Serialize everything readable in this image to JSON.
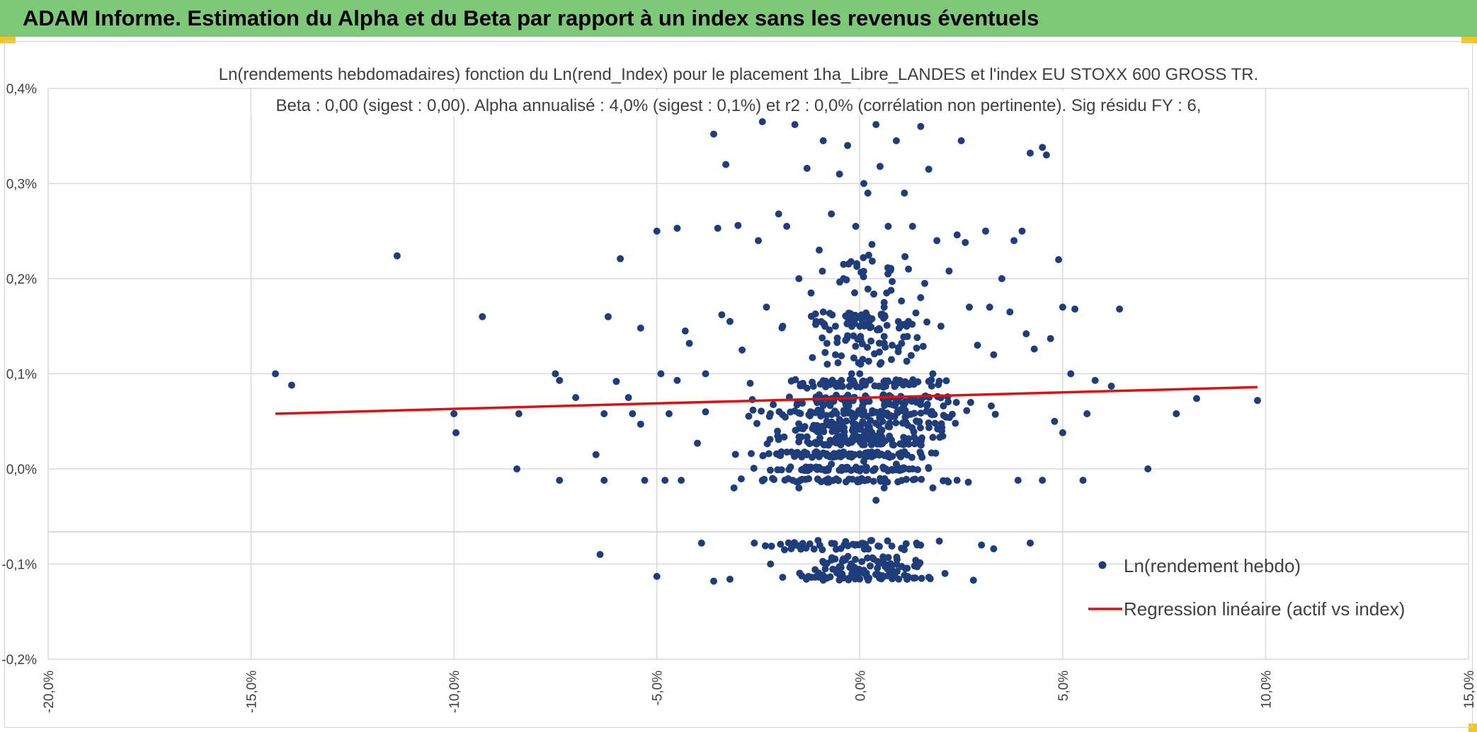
{
  "header": {
    "title": "ADAM Informe. Estimation du Alpha et du Beta par rapport à un index sans les revenus éventuels",
    "background_color": "#7ec87a",
    "corner_color": "#f5c518"
  },
  "chart_data": {
    "type": "scatter",
    "title_line1": "Ln(rendements hebdomadaires) fonction du Ln(rend_Index) pour le placement 1ha_Libre_LANDES et l'index EU STOXX 600 GROSS TR.",
    "title_line2": "Beta : 0,00 (sigest : 0,00). Alpha annualisé : 4,0% (sigest : 0,1%) et r2 : 0,0% (corrélation non pertinente). Sig résidu FY : 6,",
    "xlim": [
      -20,
      15
    ],
    "ylim": [
      -0.2,
      0.4
    ],
    "x_ticks": [
      -20,
      -15,
      -10,
      -5,
      0,
      5,
      10,
      15
    ],
    "x_tick_labels": [
      "-20,0%",
      "-15,0%",
      "-10,0%",
      "-5,0%",
      "0,0%",
      "5,0%",
      "10,0%",
      "15,0%"
    ],
    "y_ticks": [
      0.4,
      0.3,
      0.2,
      0.1,
      0.0,
      -0.1,
      -0.2
    ],
    "y_tick_labels": [
      "0,4%",
      "0,3%",
      "0,2%",
      "0,1%",
      "0,0%",
      "-0,1%",
      "-0,2%"
    ],
    "grid": true,
    "legend_position": "bottom-right",
    "series": [
      {
        "name": "Ln(rendement hebdo)",
        "kind": "scatter",
        "color": "#1f3d7a",
        "points": [
          [
            -14.4,
            0.1
          ],
          [
            -14.0,
            0.088
          ],
          [
            -11.4,
            0.224
          ],
          [
            -10.0,
            0.058
          ],
          [
            -9.95,
            0.038
          ],
          [
            -9.3,
            0.16
          ],
          [
            -8.4,
            0.058
          ],
          [
            -8.45,
            0.0
          ],
          [
            -7.5,
            0.1
          ],
          [
            -7.4,
            0.093
          ],
          [
            -7.4,
            -0.012
          ],
          [
            -7.0,
            0.075
          ],
          [
            -6.5,
            0.015
          ],
          [
            -6.4,
            -0.09
          ],
          [
            -6.3,
            -0.012
          ],
          [
            -6.3,
            0.058
          ],
          [
            -6.2,
            0.16
          ],
          [
            -6.0,
            0.092
          ],
          [
            -5.9,
            0.221
          ],
          [
            -5.7,
            0.075
          ],
          [
            -5.6,
            0.058
          ],
          [
            -5.4,
            0.148
          ],
          [
            -5.4,
            0.047
          ],
          [
            -5.3,
            -0.012
          ],
          [
            -5.0,
            0.25
          ],
          [
            -5.0,
            -0.113
          ],
          [
            -4.9,
            0.1
          ],
          [
            -4.7,
            0.058
          ],
          [
            -4.5,
            0.253
          ],
          [
            -4.5,
            0.093
          ],
          [
            -4.4,
            -0.012
          ],
          [
            -4.3,
            0.145
          ],
          [
            -4.2,
            0.132
          ],
          [
            -4.0,
            0.027
          ],
          [
            -3.9,
            -0.078
          ],
          [
            -3.8,
            0.1
          ],
          [
            -3.8,
            0.06
          ],
          [
            -3.6,
            0.352
          ],
          [
            -3.5,
            0.253
          ],
          [
            -3.4,
            0.162
          ],
          [
            -3.3,
            0.32
          ],
          [
            -3.2,
            0.155
          ],
          [
            -3.0,
            0.256
          ],
          [
            -2.9,
            0.125
          ],
          [
            -2.7,
            0.09
          ],
          [
            -2.5,
            0.24
          ],
          [
            -2.4,
            0.365
          ],
          [
            -2.3,
            0.17
          ],
          [
            -2.2,
            -0.1
          ],
          [
            -2.0,
            0.268
          ],
          [
            -1.9,
            0.15
          ],
          [
            -1.8,
            0.255
          ],
          [
            -1.6,
            0.362
          ],
          [
            -1.5,
            0.2
          ],
          [
            -1.4,
            0.09
          ],
          [
            -1.3,
            0.316
          ],
          [
            -1.2,
            0.185
          ],
          [
            -1.0,
            0.23
          ],
          [
            -0.9,
            0.345
          ],
          [
            -0.8,
            0.11
          ],
          [
            -0.7,
            0.268
          ],
          [
            -0.6,
            0.15
          ],
          [
            -0.5,
            0.31
          ],
          [
            -0.4,
            0.2
          ],
          [
            -0.3,
            0.34
          ],
          [
            -0.2,
            0.1
          ],
          [
            -0.1,
            0.255
          ],
          [
            0.0,
            0.15
          ],
          [
            0.1,
            0.3
          ],
          [
            0.2,
            0.29
          ],
          [
            0.3,
            0.236
          ],
          [
            0.4,
            0.362
          ],
          [
            0.5,
            0.318
          ],
          [
            0.6,
            0.17
          ],
          [
            0.7,
            0.255
          ],
          [
            0.8,
            0.197
          ],
          [
            0.9,
            0.345
          ],
          [
            1.0,
            0.15
          ],
          [
            1.1,
            0.29
          ],
          [
            1.2,
            0.21
          ],
          [
            1.3,
            0.255
          ],
          [
            1.4,
            0.127
          ],
          [
            1.5,
            0.36
          ],
          [
            1.6,
            0.195
          ],
          [
            1.7,
            0.315
          ],
          [
            1.8,
            0.1
          ],
          [
            1.9,
            0.24
          ],
          [
            2.0,
            0.15
          ],
          [
            2.2,
            0.208
          ],
          [
            2.4,
            0.246
          ],
          [
            2.5,
            0.345
          ],
          [
            2.6,
            0.238
          ],
          [
            2.7,
            0.17
          ],
          [
            2.9,
            0.13
          ],
          [
            3.1,
            0.25
          ],
          [
            3.2,
            0.17
          ],
          [
            3.3,
            0.12
          ],
          [
            3.5,
            0.2
          ],
          [
            3.7,
            0.165
          ],
          [
            3.8,
            0.24
          ],
          [
            4.0,
            0.25
          ],
          [
            4.1,
            0.142
          ],
          [
            4.2,
            0.332
          ],
          [
            4.3,
            0.126
          ],
          [
            4.5,
            0.338
          ],
          [
            4.6,
            0.33
          ],
          [
            4.7,
            0.137
          ],
          [
            4.9,
            0.22
          ],
          [
            5.0,
            0.17
          ],
          [
            5.2,
            0.1
          ],
          [
            5.3,
            0.168
          ],
          [
            5.6,
            0.058
          ],
          [
            5.8,
            0.093
          ],
          [
            6.2,
            0.087
          ],
          [
            6.4,
            0.168
          ],
          [
            7.1,
            0.0
          ],
          [
            7.8,
            0.058
          ],
          [
            8.3,
            0.074
          ],
          [
            9.8,
            0.072
          ],
          [
            4.8,
            0.05
          ],
          [
            5.0,
            0.038
          ],
          [
            5.5,
            -0.012
          ],
          [
            3.9,
            -0.012
          ],
          [
            4.2,
            -0.078
          ],
          [
            2.8,
            -0.117
          ],
          [
            3.0,
            -0.08
          ],
          [
            3.3,
            -0.084
          ],
          [
            -3.2,
            -0.116
          ],
          [
            -3.6,
            -0.118
          ],
          [
            -2.6,
            -0.078
          ],
          [
            -1.9,
            -0.114
          ],
          [
            -1.6,
            -0.08
          ],
          [
            -0.9,
            -0.117
          ],
          [
            1.4,
            -0.078
          ],
          [
            2.1,
            -0.11
          ],
          [
            0.4,
            -0.033
          ],
          [
            0.6,
            -0.02
          ],
          [
            -1.5,
            -0.02
          ],
          [
            1.8,
            -0.02
          ],
          [
            -4.8,
            -0.012
          ],
          [
            -3.1,
            -0.02
          ],
          [
            -2.4,
            -0.012
          ],
          [
            4.5,
            -0.012
          ],
          [
            -0.7,
            0.005
          ],
          [
            0.9,
            0.005
          ],
          [
            0.1,
            0.008
          ],
          [
            -0.2,
            0.028
          ],
          [
            0.3,
            0.038
          ],
          [
            0.7,
            0.045
          ],
          [
            -0.5,
            0.052
          ],
          [
            1.0,
            0.062
          ],
          [
            1.4,
            0.07
          ],
          [
            -1.0,
            0.078
          ],
          [
            -1.3,
            0.085
          ],
          [
            1.7,
            0.092
          ],
          [
            0.0,
            0.1
          ],
          [
            0.5,
            0.11
          ],
          [
            -0.6,
            0.12
          ],
          [
            0.8,
            0.13
          ],
          [
            -0.3,
            0.14
          ],
          [
            1.2,
            0.155
          ],
          [
            0.2,
            0.16
          ],
          [
            -0.9,
            0.165
          ],
          [
            0.6,
            0.175
          ],
          [
            1.5,
            0.18
          ]
        ],
        "band_rows": [
          {
            "y": 0.155,
            "x_min": -2.5,
            "x_max": 2.5,
            "count": 60,
            "jitter": 0.009
          },
          {
            "y": 0.09,
            "x_min": -2.6,
            "x_max": 3.1,
            "count": 70,
            "jitter": 0.004
          },
          {
            "y": 0.072,
            "x_min": -3.0,
            "x_max": 3.5,
            "count": 85,
            "jitter": 0.006
          },
          {
            "y": 0.058,
            "x_min": -3.5,
            "x_max": 3.8,
            "count": 80,
            "jitter": 0.004
          },
          {
            "y": 0.045,
            "x_min": -3.0,
            "x_max": 3.0,
            "count": 90,
            "jitter": 0.006
          },
          {
            "y": 0.03,
            "x_min": -3.2,
            "x_max": 3.0,
            "count": 85,
            "jitter": 0.005
          },
          {
            "y": 0.015,
            "x_min": -3.7,
            "x_max": 3.0,
            "count": 95,
            "jitter": 0.003
          },
          {
            "y": 0.0,
            "x_min": -3.9,
            "x_max": 2.6,
            "count": 70,
            "jitter": 0.002
          },
          {
            "y": -0.012,
            "x_min": -4.4,
            "x_max": 3.3,
            "count": 55,
            "jitter": 0.002
          },
          {
            "y": -0.08,
            "x_min": -3.8,
            "x_max": 3.0,
            "count": 45,
            "jitter": 0.005
          },
          {
            "y": -0.1,
            "x_min": -1.8,
            "x_max": 2.2,
            "count": 55,
            "jitter": 0.008
          },
          {
            "y": -0.113,
            "x_min": -2.4,
            "x_max": 2.5,
            "count": 60,
            "jitter": 0.004
          },
          {
            "y": 0.125,
            "x_min": -1.7,
            "x_max": 2.2,
            "count": 40,
            "jitter": 0.015
          },
          {
            "y": 0.2,
            "x_min": -1.6,
            "x_max": 1.9,
            "count": 25,
            "jitter": 0.025
          }
        ]
      },
      {
        "name": "Regression linéaire (actif vs index)",
        "kind": "line",
        "color": "#e01010",
        "x": [
          -14.4,
          9.8
        ],
        "y": [
          0.058,
          0.086
        ]
      }
    ]
  }
}
